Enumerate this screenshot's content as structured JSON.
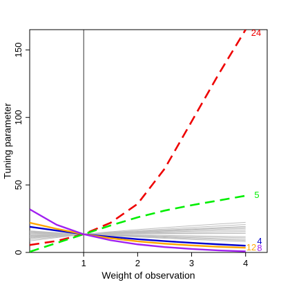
{
  "chart_data": {
    "type": "line",
    "xlabel": "Weight of observation",
    "ylabel": "Tuning parameter",
    "xlim": [
      0,
      4.4
    ],
    "ylim": [
      0,
      165
    ],
    "x_ticks": [
      1,
      2,
      3,
      4
    ],
    "y_ticks": [
      0,
      50,
      100,
      150
    ],
    "reference_vline": 1,
    "grid": false,
    "legend": "none",
    "colors": {
      "gray": "#bebebe",
      "purple": "#a020f0",
      "blue": "#0000cd",
      "orange": "#ffa500",
      "green": "#00ee00",
      "red": "#ee0000"
    },
    "x": [
      0,
      0.5,
      1,
      1.5,
      2,
      2.5,
      3,
      3.5,
      4
    ],
    "background_series": [
      {
        "values": [
          9.5,
          11.5,
          13.5,
          14.9,
          16.1,
          17.3,
          18.5,
          19.6,
          20.7
        ]
      },
      {
        "values": [
          10.5,
          12.0,
          13.5,
          14.6,
          15.6,
          16.6,
          17.5,
          18.4,
          19.3
        ]
      },
      {
        "values": [
          11.0,
          12.3,
          13.5,
          14.5,
          15.4,
          16.2,
          17.0,
          17.8,
          18.6
        ]
      },
      {
        "values": [
          11.5,
          12.5,
          13.5,
          14.3,
          15.1,
          15.8,
          16.5,
          17.1,
          17.7
        ]
      },
      {
        "values": [
          12.0,
          12.8,
          13.5,
          14.1,
          14.7,
          15.2,
          15.7,
          16.2,
          16.6
        ]
      },
      {
        "values": [
          12.5,
          13.0,
          13.5,
          13.9,
          14.3,
          14.6,
          14.9,
          15.2,
          15.5
        ]
      },
      {
        "values": [
          13.0,
          13.3,
          13.5,
          13.7,
          13.9,
          14.0,
          14.1,
          14.2,
          14.3
        ]
      },
      {
        "values": [
          14.0,
          13.8,
          13.5,
          13.2,
          12.9,
          12.6,
          12.3,
          12.0,
          11.7
        ]
      },
      {
        "values": [
          14.5,
          14.0,
          13.5,
          13.0,
          12.5,
          12.0,
          11.6,
          11.2,
          10.8
        ]
      },
      {
        "values": [
          15.0,
          14.2,
          13.5,
          12.8,
          12.1,
          11.5,
          10.9,
          10.3,
          9.7
        ]
      },
      {
        "values": [
          15.5,
          14.5,
          13.5,
          12.6,
          11.8,
          11.0,
          10.3,
          9.6,
          8.9
        ]
      },
      {
        "values": [
          16.0,
          14.7,
          13.5,
          12.4,
          11.4,
          10.5,
          9.6,
          8.8,
          8.0
        ]
      },
      {
        "values": [
          8.5,
          11.0,
          13.5,
          15.3,
          16.9,
          18.4,
          19.8,
          21.1,
          22.3
        ]
      },
      {
        "values": [
          13.2,
          13.4,
          13.5,
          13.6,
          13.7,
          13.8,
          13.9,
          14.0,
          14.1
        ]
      }
    ],
    "highlighted_series": [
      {
        "label": "24",
        "color": "red",
        "dashed": true,
        "values": [
          5.5,
          8.5,
          13.5,
          22,
          36,
          62,
          97,
          132,
          165
        ]
      },
      {
        "label": "5",
        "color": "green",
        "dashed": true,
        "values": [
          0.5,
          7,
          13.5,
          20,
          26,
          31,
          35,
          38.5,
          42
        ]
      },
      {
        "label": "4",
        "color": "blue",
        "dashed": false,
        "values": [
          19,
          16.2,
          13.5,
          11.5,
          9.8,
          8.4,
          7.1,
          6.0,
          5.0
        ]
      },
      {
        "label": "12",
        "color": "orange",
        "dashed": false,
        "values": [
          22,
          17.5,
          13.5,
          10.5,
          8.2,
          6.5,
          5.2,
          4.2,
          3.5
        ]
      },
      {
        "label": "8",
        "color": "purple",
        "dashed": false,
        "values": [
          32,
          20.5,
          13.5,
          9.0,
          6.0,
          4.0,
          2.6,
          1.5,
          0.8
        ]
      }
    ]
  }
}
